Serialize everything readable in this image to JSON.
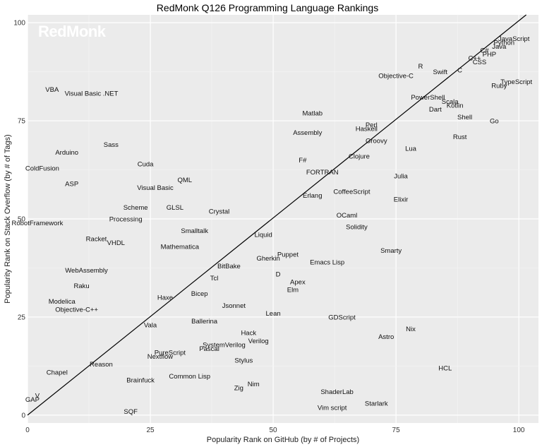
{
  "chart_data": {
    "type": "scatter",
    "title": "RedMonk Q126 Programming Language Rankings",
    "xlabel": "Popularity Rank on GitHub (by # of Projects)",
    "ylabel": "Popularity Rank on Stack Overflow (by # of Tags)",
    "watermark": "RedMonk",
    "xlim": [
      0,
      104
    ],
    "ylim": [
      -2,
      102
    ],
    "xticks": [
      0,
      25,
      50,
      75,
      100
    ],
    "yticks": [
      0,
      25,
      50,
      75,
      100
    ],
    "grid": true,
    "diagonal": [
      [
        0,
        0
      ],
      [
        101.5,
        102
      ]
    ],
    "points": [
      {
        "label": "JavaScript",
        "x": 99,
        "y": 96
      },
      {
        "label": "Python",
        "x": 97,
        "y": 95
      },
      {
        "label": "Java",
        "x": 96,
        "y": 94
      },
      {
        "label": "C#",
        "x": 93,
        "y": 93
      },
      {
        "label": "PHP",
        "x": 94,
        "y": 92
      },
      {
        "label": "C++",
        "x": 91,
        "y": 91
      },
      {
        "label": "CSS",
        "x": 92,
        "y": 90
      },
      {
        "label": "R",
        "x": 80,
        "y": 89
      },
      {
        "label": "C",
        "x": 88,
        "y": 88
      },
      {
        "label": "Swift",
        "x": 84,
        "y": 87.5
      },
      {
        "label": "Objective-C",
        "x": 75,
        "y": 86.5
      },
      {
        "label": "TypeScript",
        "x": 99.5,
        "y": 85
      },
      {
        "label": "Ruby",
        "x": 96,
        "y": 84
      },
      {
        "label": "VBA",
        "x": 5,
        "y": 83
      },
      {
        "label": "Visual Basic .NET",
        "x": 13,
        "y": 82
      },
      {
        "label": "PowerShell",
        "x": 81.5,
        "y": 81
      },
      {
        "label": "Scala",
        "x": 86,
        "y": 80
      },
      {
        "label": "Kotlin",
        "x": 87,
        "y": 79
      },
      {
        "label": "Dart",
        "x": 83,
        "y": 78
      },
      {
        "label": "Matlab",
        "x": 58,
        "y": 77
      },
      {
        "label": "Shell",
        "x": 89,
        "y": 76
      },
      {
        "label": "Go",
        "x": 95,
        "y": 75
      },
      {
        "label": "Perl",
        "x": 70,
        "y": 74
      },
      {
        "label": "Haskell",
        "x": 69,
        "y": 73
      },
      {
        "label": "Assembly",
        "x": 57,
        "y": 72
      },
      {
        "label": "Rust",
        "x": 88,
        "y": 71
      },
      {
        "label": "Groovy",
        "x": 71,
        "y": 70
      },
      {
        "label": "Sass",
        "x": 17,
        "y": 69
      },
      {
        "label": "Lua",
        "x": 78,
        "y": 68
      },
      {
        "label": "Arduino",
        "x": 8,
        "y": 67
      },
      {
        "label": "Clojure",
        "x": 67.5,
        "y": 66
      },
      {
        "label": "F#",
        "x": 56,
        "y": 65
      },
      {
        "label": "Cuda",
        "x": 24,
        "y": 64
      },
      {
        "label": "ColdFusion",
        "x": 3,
        "y": 63
      },
      {
        "label": "FORTRAN",
        "x": 60,
        "y": 62
      },
      {
        "label": "Julia",
        "x": 76,
        "y": 61
      },
      {
        "label": "QML",
        "x": 32,
        "y": 60
      },
      {
        "label": "ASP",
        "x": 9,
        "y": 59
      },
      {
        "label": "Visual Basic",
        "x": 26,
        "y": 58
      },
      {
        "label": "CoffeeScript",
        "x": 66,
        "y": 57
      },
      {
        "label": "Erlang",
        "x": 58,
        "y": 56
      },
      {
        "label": "Elixir",
        "x": 76,
        "y": 55
      },
      {
        "label": "Scheme",
        "x": 22,
        "y": 53
      },
      {
        "label": "GLSL",
        "x": 30,
        "y": 53
      },
      {
        "label": "Crystal",
        "x": 39,
        "y": 52
      },
      {
        "label": "OCaml",
        "x": 65,
        "y": 51
      },
      {
        "label": "Processing",
        "x": 20,
        "y": 50
      },
      {
        "label": "RobotFramework",
        "x": 2,
        "y": 49
      },
      {
        "label": "Solidity",
        "x": 67,
        "y": 48
      },
      {
        "label": "Smalltalk",
        "x": 34,
        "y": 47
      },
      {
        "label": "Liquid",
        "x": 48,
        "y": 46
      },
      {
        "label": "Racket",
        "x": 14,
        "y": 45
      },
      {
        "label": "VHDL",
        "x": 18,
        "y": 44
      },
      {
        "label": "Mathematica",
        "x": 31,
        "y": 43
      },
      {
        "label": "Smarty",
        "x": 74,
        "y": 42
      },
      {
        "label": "Puppet",
        "x": 53,
        "y": 41
      },
      {
        "label": "Gherkin",
        "x": 49,
        "y": 40
      },
      {
        "label": "Emacs Lisp",
        "x": 61,
        "y": 39
      },
      {
        "label": "BitBake",
        "x": 41,
        "y": 38
      },
      {
        "label": "WebAssembly",
        "x": 12,
        "y": 37
      },
      {
        "label": "D",
        "x": 51,
        "y": 36
      },
      {
        "label": "Tcl",
        "x": 38,
        "y": 35
      },
      {
        "label": "Apex",
        "x": 55,
        "y": 34
      },
      {
        "label": "Raku",
        "x": 11,
        "y": 33
      },
      {
        "label": "Elm",
        "x": 54,
        "y": 32
      },
      {
        "label": "Bicep",
        "x": 35,
        "y": 31
      },
      {
        "label": "Haxe",
        "x": 28,
        "y": 30
      },
      {
        "label": "Modelica",
        "x": 7,
        "y": 29
      },
      {
        "label": "Jsonnet",
        "x": 42,
        "y": 28
      },
      {
        "label": "Objective-C++",
        "x": 10,
        "y": 27
      },
      {
        "label": "Lean",
        "x": 50,
        "y": 26
      },
      {
        "label": "GDScript",
        "x": 64,
        "y": 25
      },
      {
        "label": "Ballerina",
        "x": 36,
        "y": 24
      },
      {
        "label": "Vala",
        "x": 25,
        "y": 23
      },
      {
        "label": "Nix",
        "x": 78,
        "y": 22
      },
      {
        "label": "Hack",
        "x": 45,
        "y": 21
      },
      {
        "label": "Astro",
        "x": 73,
        "y": 20
      },
      {
        "label": "Verilog",
        "x": 47,
        "y": 19
      },
      {
        "label": "SystemVerilog",
        "x": 40,
        "y": 18
      },
      {
        "label": "Pascal",
        "x": 37,
        "y": 17
      },
      {
        "label": "PureScript",
        "x": 29,
        "y": 16
      },
      {
        "label": "Nextflow",
        "x": 27,
        "y": 15
      },
      {
        "label": "Stylus",
        "x": 44,
        "y": 14
      },
      {
        "label": "Reason",
        "x": 15,
        "y": 13
      },
      {
        "label": "HCL",
        "x": 85,
        "y": 12
      },
      {
        "label": "Chapel",
        "x": 6,
        "y": 11
      },
      {
        "label": "Common Lisp",
        "x": 33,
        "y": 10
      },
      {
        "label": "Brainfuck",
        "x": 23,
        "y": 9
      },
      {
        "label": "Nim",
        "x": 46,
        "y": 8
      },
      {
        "label": "Zig",
        "x": 43,
        "y": 7
      },
      {
        "label": "ShaderLab",
        "x": 63,
        "y": 6
      },
      {
        "label": "V",
        "x": 2,
        "y": 5
      },
      {
        "label": "GAP",
        "x": 1,
        "y": 4
      },
      {
        "label": "Starlark",
        "x": 71,
        "y": 3
      },
      {
        "label": "Vim script",
        "x": 62,
        "y": 2
      },
      {
        "label": "SQF",
        "x": 21,
        "y": 1
      }
    ]
  },
  "colors": {
    "panel_bg": "#ebebeb",
    "grid_major": "#ffffff",
    "text": "#111111",
    "line": "#000000"
  }
}
